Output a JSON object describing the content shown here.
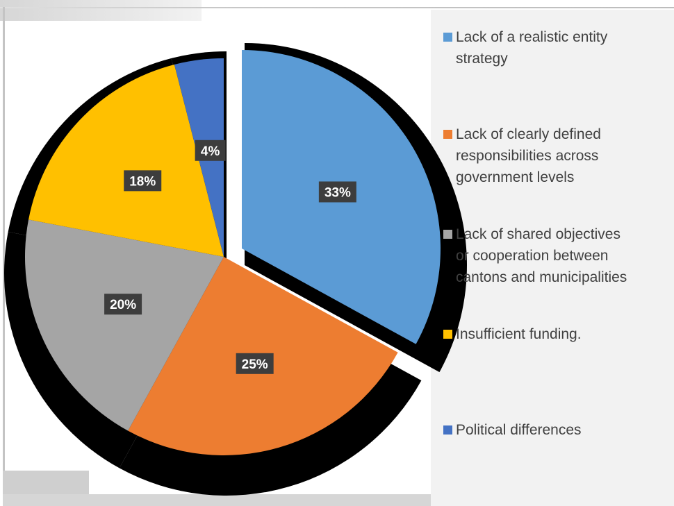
{
  "chart_data": {
    "type": "pie",
    "title": "",
    "slices": [
      {
        "label": "Lack of a realistic entity strategy",
        "value": 33,
        "display": "33%",
        "color": "#5b9bd5"
      },
      {
        "label": "Lack of clearly defined responsibilities across government levels",
        "value": 25,
        "display": "25%",
        "color": "#ed7d31"
      },
      {
        "label": "Lack of shared objectives or cooperation between cantons and municipalities",
        "value": 20,
        "display": "20%",
        "color": "#a5a5a5"
      },
      {
        "label": "Insufficient funding.",
        "value": 18,
        "display": "18%",
        "color": "#ffc000"
      },
      {
        "label": "Political differences",
        "value": 4,
        "display": "4%",
        "color": "#4472c4"
      }
    ],
    "legend": {
      "position": "right",
      "items": [
        "Lack of a realistic entity\nstrategy",
        "Lack of clearly defined\nresponsibilities across\ngovernment levels",
        "Lack of shared objectives\nor cooperation between\ncantons and municipalities",
        "Insufficient funding.",
        "Political differences"
      ]
    },
    "exploded_slice": "Lack of a realistic entity strategy",
    "shadow_color": "#000000"
  }
}
